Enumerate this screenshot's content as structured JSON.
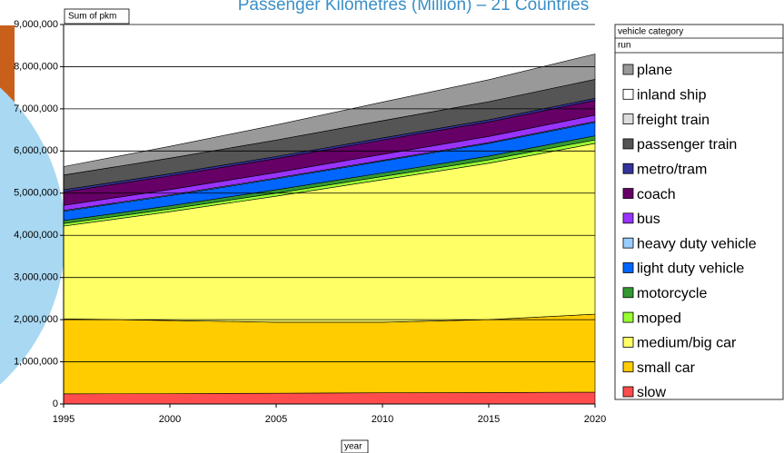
{
  "chart_data": {
    "type": "stacked_area",
    "title": "Passenger Kilometres (Million) – 21 Countries",
    "ylabel": "Sum of pkm",
    "xlabel": "year",
    "legend_title": "vehicle category",
    "legend_subtitle": "run",
    "x": [
      1995,
      2000,
      2005,
      2010,
      2015,
      2020
    ],
    "xlim": [
      1995,
      2020
    ],
    "xticks": [
      1995,
      2000,
      2005,
      2010,
      2015,
      2020
    ],
    "ylim": [
      0,
      9000000
    ],
    "yticks": [
      0,
      {
        "value": 1000000,
        "label": "1,000,000"
      },
      {
        "value": 2000000,
        "label": "2,000,000"
      },
      {
        "value": 3000000,
        "label": "3,000,000"
      },
      {
        "value": 4000000,
        "label": "4,000,000"
      },
      {
        "value": 5000000,
        "label": "5,000,000"
      },
      {
        "value": 6000000,
        "label": "6,000,000"
      },
      {
        "value": 7000000,
        "label": "7,000,000"
      },
      {
        "value": 8000000,
        "label": "8,000,000"
      },
      {
        "value": 9000000,
        "label": "9,000,000"
      }
    ],
    "grid": true,
    "legend": "right",
    "series": [
      {
        "name": "slow",
        "color": "#ff4d4d",
        "values": [
          240000,
          245000,
          255000,
          265000,
          270000,
          280000
        ]
      },
      {
        "name": "small car",
        "color": "#ffcc00",
        "values": [
          1780000,
          1735000,
          1685000,
          1675000,
          1730000,
          1850000
        ]
      },
      {
        "name": "medium/big car",
        "color": "#ffff66",
        "values": [
          2200000,
          2580000,
          2990000,
          3380000,
          3710000,
          4050000
        ]
      },
      {
        "name": "moped",
        "color": "#99ff33",
        "values": [
          60000,
          65000,
          70000,
          75000,
          80000,
          85000
        ]
      },
      {
        "name": "motorcycle",
        "color": "#339933",
        "values": [
          70000,
          75000,
          80000,
          85000,
          90000,
          95000
        ]
      },
      {
        "name": "light duty vehicle",
        "color": "#0066ff",
        "values": [
          220000,
          240000,
          260000,
          280000,
          300000,
          320000
        ]
      },
      {
        "name": "heavy duty vehicle",
        "color": "#99ccff",
        "values": [
          20000,
          20000,
          20000,
          20000,
          20000,
          20000
        ]
      },
      {
        "name": "bus",
        "color": "#9933ff",
        "values": [
          120000,
          125000,
          130000,
          140000,
          145000,
          150000
        ]
      },
      {
        "name": "coach",
        "color": "#660066",
        "values": [
          320000,
          325000,
          330000,
          340000,
          345000,
          350000
        ]
      },
      {
        "name": "metro/tram",
        "color": "#333399",
        "values": [
          50000,
          50000,
          50000,
          50000,
          50000,
          50000
        ]
      },
      {
        "name": "passenger train",
        "color": "#555555",
        "values": [
          350000,
          370000,
          390000,
          410000,
          430000,
          450000
        ]
      },
      {
        "name": "freight train",
        "color": "#dddddd",
        "values": [
          0,
          0,
          0,
          0,
          0,
          0
        ]
      },
      {
        "name": "inland ship",
        "color": "#ffffff",
        "values": [
          0,
          0,
          0,
          0,
          0,
          0
        ]
      },
      {
        "name": "plane",
        "color": "#999999",
        "values": [
          200000,
          280000,
          360000,
          440000,
          520000,
          600000
        ]
      }
    ]
  }
}
